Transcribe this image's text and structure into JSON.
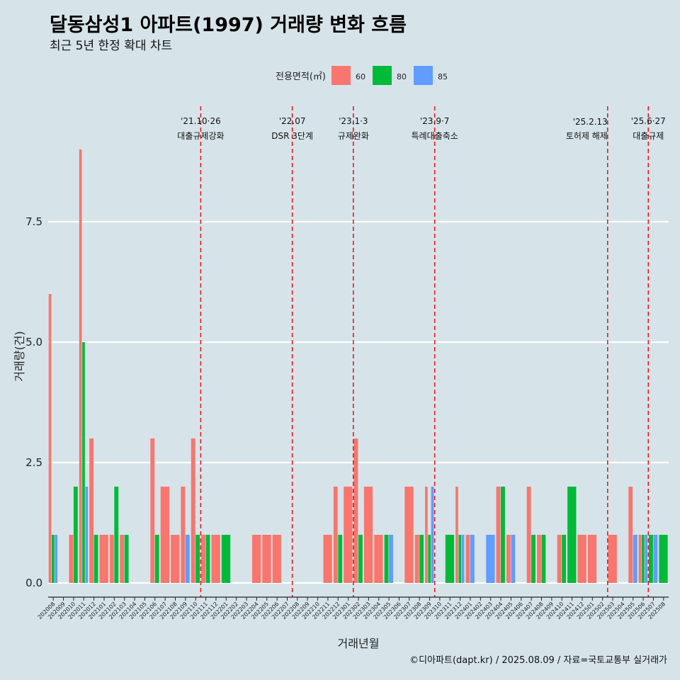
{
  "chart_data": {
    "type": "bar",
    "title": "달동삼성1 아파트(1997) 거래량 변화 흐름",
    "subtitle": "최근 5년 한정 확대 차트",
    "xlabel": "거래년월",
    "ylabel": "거래량(건)",
    "ylim": [
      0,
      9.3
    ],
    "yticks": [
      "0.0",
      "2.5",
      "5.0",
      "7.5"
    ],
    "grid": true,
    "legend": {
      "title": "전용면적(㎡)",
      "placement": "top",
      "items": [
        {
          "label": "60",
          "color": "#f8766d"
        },
        {
          "label": "80",
          "color": "#00ba38"
        },
        {
          "label": "85",
          "color": "#619cff"
        }
      ]
    },
    "categories": [
      "202008",
      "202009",
      "202010",
      "202011",
      "202012",
      "202101",
      "202102",
      "202103",
      "202104",
      "202105",
      "202106",
      "202107",
      "202108",
      "202109",
      "202110",
      "202111",
      "202112",
      "202201",
      "202202",
      "202203",
      "202204",
      "202205",
      "202206",
      "202207",
      "202208",
      "202209",
      "202210",
      "202211",
      "202212",
      "202301",
      "202302",
      "202303",
      "202304",
      "202305",
      "202306",
      "202307",
      "202308",
      "202309",
      "202310",
      "202311",
      "202312",
      "202401",
      "202402",
      "202403",
      "202404",
      "202405",
      "202406",
      "202407",
      "202408",
      "202409",
      "202410",
      "202411",
      "202412",
      "202501",
      "202502",
      "202503",
      "202504",
      "202505",
      "202506",
      "202507",
      "202508"
    ],
    "series": [
      {
        "name": "60",
        "values": [
          6,
          0,
          1,
          9,
          3,
          1,
          1,
          1,
          0,
          0,
          3,
          2,
          1,
          2,
          3,
          1,
          1,
          0,
          0,
          0,
          1,
          1,
          1,
          0,
          0,
          0,
          0,
          1,
          2,
          2,
          3,
          2,
          1,
          0,
          0,
          2,
          1,
          2,
          0,
          0,
          2,
          1,
          0,
          0,
          2,
          1,
          0,
          2,
          1,
          0,
          1,
          0,
          1,
          1,
          0,
          1,
          0,
          2,
          1,
          0,
          0
        ]
      },
      {
        "name": "80",
        "values": [
          1,
          0,
          2,
          5,
          1,
          0,
          2,
          1,
          0,
          0,
          1,
          0,
          0,
          0,
          1,
          1,
          0,
          1,
          0,
          0,
          0,
          0,
          0,
          0,
          0,
          0,
          0,
          0,
          1,
          0,
          1,
          0,
          0,
          1,
          0,
          0,
          1,
          1,
          0,
          1,
          1,
          0,
          0,
          0,
          2,
          0,
          0,
          1,
          1,
          0,
          1,
          2,
          0,
          0,
          0,
          0,
          0,
          0,
          1,
          1,
          1
        ]
      },
      {
        "name": "85",
        "values": [
          1,
          0,
          0,
          2,
          0,
          0,
          0,
          0,
          0,
          0,
          0,
          0,
          0,
          1,
          0,
          0,
          0,
          0,
          0,
          0,
          0,
          0,
          0,
          0,
          0,
          0,
          0,
          0,
          0,
          0,
          0,
          0,
          0,
          1,
          0,
          0,
          0,
          2,
          0,
          0,
          1,
          1,
          0,
          1,
          0,
          1,
          0,
          0,
          0,
          0,
          0,
          0,
          0,
          0,
          0,
          0,
          0,
          1,
          1,
          1,
          0
        ]
      }
    ],
    "events": [
      {
        "after": "202110",
        "date": "'21.10·26",
        "label": "대출규제강화"
      },
      {
        "after": "202207",
        "date": "'22.07",
        "label": "DSR 3단계"
      },
      {
        "after": "202301",
        "date": "'23.1·3",
        "label": "규제완화"
      },
      {
        "after": "202309",
        "date": "'23.9·7",
        "label": "특례대출축소"
      },
      {
        "after": "202502",
        "date": "'25.2.13",
        "label": "토허제 해제"
      },
      {
        "after": "202506",
        "date": "'25.6·27",
        "label": "대출규제"
      }
    ],
    "caption": "©디아파트(dapt.kr) / 2025.08.09 / 자료=국토교통부 실거래가"
  }
}
